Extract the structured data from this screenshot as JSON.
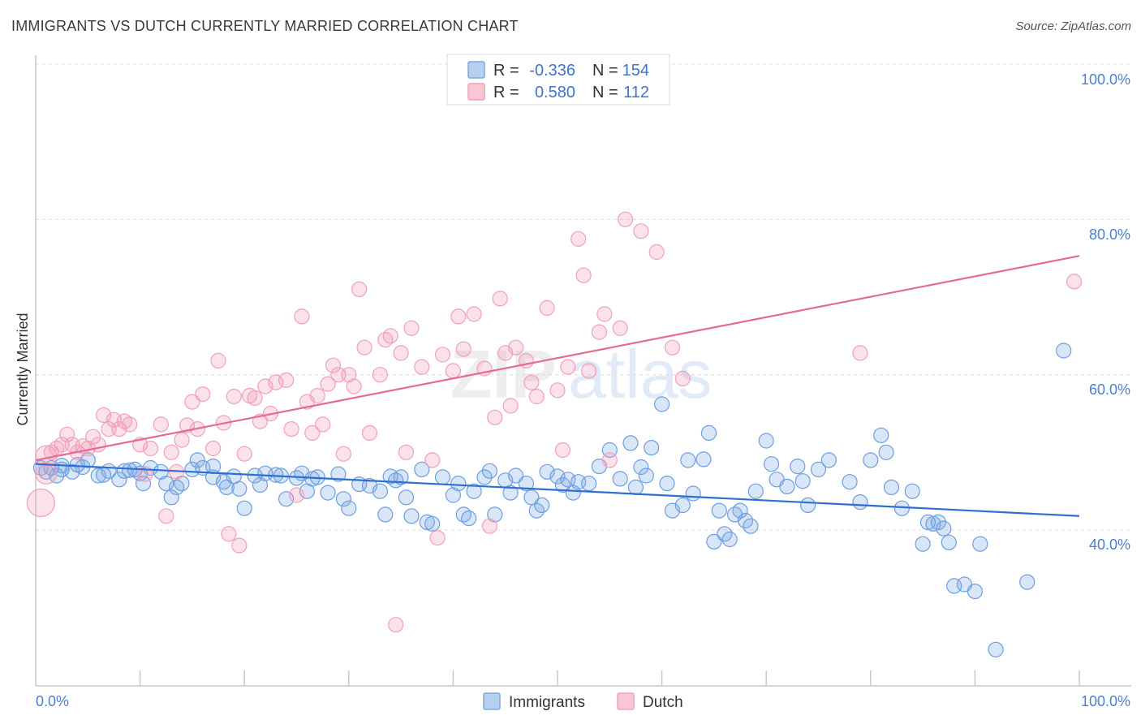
{
  "header": {
    "title": "IMMIGRANTS VS DUTCH CURRENTLY MARRIED CORRELATION CHART",
    "source": "Source: ZipAtlas.com"
  },
  "watermark": {
    "zip": "ZIP",
    "atlas": "atlas"
  },
  "legend": {
    "r_label": "R =",
    "n_label": "N =",
    "rows": [
      {
        "name": "Immigrants",
        "r": "-0.336",
        "n": "154",
        "color": "#7fa8e0"
      },
      {
        "name": "Dutch",
        "r": "0.580",
        "n": "112",
        "color": "#f0a0b8"
      }
    ]
  },
  "chart_data": {
    "type": "scatter",
    "title": "IMMIGRANTS VS DUTCH CURRENTLY MARRIED CORRELATION CHART",
    "xlabel": "",
    "ylabel": "Currently Married",
    "xlim": [
      0,
      100
    ],
    "ylim": [
      20,
      104
    ],
    "x_tick_labels": [
      "0.0%",
      "100.0%"
    ],
    "y_ticks": [
      40,
      60,
      80,
      100
    ],
    "y_tick_labels": [
      "40.0%",
      "60.0%",
      "80.0%",
      "100.0%"
    ],
    "legend_position": "bottom-center",
    "series": [
      {
        "name": "Immigrants",
        "color": "#6d9ee0",
        "line_color": "#2e6fd1",
        "trend": {
          "x": [
            0,
            100
          ],
          "y": [
            48.5,
            41.8
          ]
        },
        "points": [
          [
            0.5,
            48
          ],
          [
            1,
            47.5
          ],
          [
            1.5,
            48
          ],
          [
            2,
            47
          ],
          [
            2.5,
            48.3
          ],
          [
            3.5,
            47.5
          ],
          [
            4.5,
            48.1
          ],
          [
            5,
            49
          ],
          [
            6,
            47
          ],
          [
            6.5,
            47.1
          ],
          [
            7,
            47.6
          ],
          [
            8,
            46.5
          ],
          [
            8.5,
            47.6
          ],
          [
            9,
            47.7
          ],
          [
            10,
            47.3
          ],
          [
            10.3,
            46
          ],
          [
            11,
            48
          ],
          [
            12,
            47.5
          ],
          [
            12.5,
            46
          ],
          [
            13,
            44.2
          ],
          [
            13.5,
            45.5
          ],
          [
            14,
            46
          ],
          [
            15,
            47.8
          ],
          [
            15.5,
            49
          ],
          [
            16,
            48
          ],
          [
            17,
            46.8
          ],
          [
            18,
            46.2
          ],
          [
            18.3,
            45.5
          ],
          [
            19,
            46.9
          ],
          [
            19.5,
            45.3
          ],
          [
            20,
            42.8
          ],
          [
            21,
            47
          ],
          [
            21.5,
            45.8
          ],
          [
            22,
            47.3
          ],
          [
            23,
            47.1
          ],
          [
            23.5,
            47
          ],
          [
            24,
            44
          ],
          [
            25,
            46.7
          ],
          [
            25.5,
            47.3
          ],
          [
            26,
            45
          ],
          [
            27,
            46.8
          ],
          [
            28,
            44.8
          ],
          [
            29,
            47.2
          ],
          [
            29.5,
            44
          ],
          [
            30,
            42.8
          ],
          [
            31,
            45.9
          ],
          [
            32,
            45.7
          ],
          [
            33,
            45
          ],
          [
            33.5,
            42
          ],
          [
            34,
            46.9
          ],
          [
            35,
            46.8
          ],
          [
            35.5,
            44.2
          ],
          [
            36,
            41.8
          ],
          [
            37,
            47.8
          ],
          [
            37.5,
            41
          ],
          [
            38,
            40.8
          ],
          [
            39,
            46.8
          ],
          [
            40,
            44.5
          ],
          [
            40.5,
            46
          ],
          [
            41,
            42
          ],
          [
            41.5,
            41.5
          ],
          [
            42,
            45
          ],
          [
            43,
            46.8
          ],
          [
            43.5,
            47.6
          ],
          [
            44,
            42
          ],
          [
            45,
            46.4
          ],
          [
            45.5,
            44.8
          ],
          [
            46,
            47
          ],
          [
            47,
            46
          ],
          [
            47.5,
            44.2
          ],
          [
            48,
            42.5
          ],
          [
            48.5,
            43.2
          ],
          [
            49,
            47.5
          ],
          [
            50,
            46.9
          ],
          [
            50.5,
            45.8
          ],
          [
            51,
            46.5
          ],
          [
            52,
            46.2
          ],
          [
            53,
            46
          ],
          [
            54,
            48.2
          ],
          [
            55,
            50.3
          ],
          [
            56,
            46.6
          ],
          [
            57,
            51.2
          ],
          [
            57.5,
            45.5
          ],
          [
            58,
            48.1
          ],
          [
            59,
            50.6
          ],
          [
            60,
            56.2
          ],
          [
            60.5,
            46
          ],
          [
            61,
            42.5
          ],
          [
            62,
            43.2
          ],
          [
            62.5,
            49
          ],
          [
            63,
            44.7
          ],
          [
            64,
            49.1
          ],
          [
            64.5,
            52.5
          ],
          [
            65,
            38.5
          ],
          [
            65.5,
            42.5
          ],
          [
            66,
            39.5
          ],
          [
            66.5,
            38.8
          ],
          [
            67,
            42
          ],
          [
            67.5,
            42.5
          ],
          [
            68,
            41.2
          ],
          [
            68.5,
            40.5
          ],
          [
            69,
            45
          ],
          [
            70,
            51.5
          ],
          [
            70.5,
            48.5
          ],
          [
            71,
            46.5
          ],
          [
            72,
            45.6
          ],
          [
            73,
            48.2
          ],
          [
            73.5,
            46.3
          ],
          [
            74,
            43.2
          ],
          [
            75,
            47.8
          ],
          [
            76,
            49
          ],
          [
            78,
            46.2
          ],
          [
            79,
            43.6
          ],
          [
            80,
            49
          ],
          [
            81,
            52.2
          ],
          [
            81.5,
            50
          ],
          [
            82,
            45.5
          ],
          [
            83,
            42.8
          ],
          [
            84,
            45
          ],
          [
            85,
            38.2
          ],
          [
            85.5,
            41
          ],
          [
            86,
            40.8
          ],
          [
            86.5,
            41
          ],
          [
            87,
            40.2
          ],
          [
            87.5,
            38.4
          ],
          [
            88,
            32.8
          ],
          [
            89,
            33
          ],
          [
            90,
            32.1
          ],
          [
            90.5,
            38.2
          ],
          [
            92,
            24.6
          ],
          [
            95,
            33.3
          ],
          [
            98.5,
            63.1
          ],
          [
            2.5,
            47.8
          ],
          [
            4,
            48.4
          ],
          [
            9.5,
            47.8
          ],
          [
            17,
            48.2
          ],
          [
            26.5,
            46.6
          ],
          [
            34.5,
            46.4
          ],
          [
            51.5,
            44.8
          ],
          [
            58.5,
            47
          ]
        ]
      },
      {
        "name": "Dutch",
        "color": "#f0a0b8",
        "line_color": "#e46a94",
        "trend": {
          "x": [
            0,
            100
          ],
          "y": [
            49,
            75.3
          ]
        },
        "points": [
          [
            0.5,
            43.5
          ],
          [
            1,
            47.3
          ],
          [
            1,
            49.5
          ],
          [
            1.5,
            50
          ],
          [
            2,
            50.5
          ],
          [
            2.5,
            51
          ],
          [
            3,
            52.3
          ],
          [
            3.5,
            51
          ],
          [
            4,
            50
          ],
          [
            4.5,
            50.8
          ],
          [
            5,
            50.5
          ],
          [
            5.5,
            52
          ],
          [
            6,
            51
          ],
          [
            6.5,
            54.8
          ],
          [
            7,
            53
          ],
          [
            7.5,
            54.2
          ],
          [
            8,
            53
          ],
          [
            8.5,
            54
          ],
          [
            9,
            53.6
          ],
          [
            10,
            51
          ],
          [
            10.5,
            47.2
          ],
          [
            11,
            50.5
          ],
          [
            12,
            53.6
          ],
          [
            12.5,
            41.8
          ],
          [
            13,
            50
          ],
          [
            13.5,
            47.5
          ],
          [
            14,
            51.6
          ],
          [
            14.5,
            53.5
          ],
          [
            15,
            56.5
          ],
          [
            15.5,
            53
          ],
          [
            16,
            57.5
          ],
          [
            17,
            50.5
          ],
          [
            17.5,
            61.8
          ],
          [
            18,
            53.8
          ],
          [
            18.5,
            39.5
          ],
          [
            19,
            57.2
          ],
          [
            19.5,
            38
          ],
          [
            20,
            49.8
          ],
          [
            20.5,
            57.3
          ],
          [
            21,
            57
          ],
          [
            21.5,
            54
          ],
          [
            22,
            58.5
          ],
          [
            22.5,
            55
          ],
          [
            23,
            59
          ],
          [
            24,
            59.3
          ],
          [
            24.5,
            53
          ],
          [
            25,
            44.5
          ],
          [
            25.5,
            67.5
          ],
          [
            26,
            56.5
          ],
          [
            26.5,
            52.5
          ],
          [
            27,
            57.3
          ],
          [
            27.5,
            53.6
          ],
          [
            28,
            58.8
          ],
          [
            28.5,
            61.2
          ],
          [
            29,
            60
          ],
          [
            29.5,
            49.8
          ],
          [
            30,
            60
          ],
          [
            30.5,
            58.5
          ],
          [
            31,
            71
          ],
          [
            31.5,
            63.5
          ],
          [
            32,
            52.5
          ],
          [
            33,
            60
          ],
          [
            33.5,
            64.5
          ],
          [
            34,
            65
          ],
          [
            34.5,
            27.8
          ],
          [
            35,
            62.8
          ],
          [
            35.5,
            50
          ],
          [
            36,
            66
          ],
          [
            37,
            61
          ],
          [
            38,
            49
          ],
          [
            38.5,
            39
          ],
          [
            39,
            62.6
          ],
          [
            40,
            60.5
          ],
          [
            40.5,
            67.5
          ],
          [
            41,
            63.3
          ],
          [
            42,
            67.8
          ],
          [
            43,
            60.8
          ],
          [
            43.5,
            40.5
          ],
          [
            44,
            54.5
          ],
          [
            44.5,
            69.8
          ],
          [
            45,
            62.8
          ],
          [
            45.5,
            56
          ],
          [
            46,
            63.5
          ],
          [
            47,
            61.8
          ],
          [
            47.5,
            59
          ],
          [
            48,
            57.2
          ],
          [
            49,
            68.6
          ],
          [
            50,
            58
          ],
          [
            50.5,
            50.3
          ],
          [
            51,
            61
          ],
          [
            52,
            77.5
          ],
          [
            52.5,
            72.8
          ],
          [
            53,
            60.5
          ],
          [
            54,
            65.5
          ],
          [
            54.5,
            67.8
          ],
          [
            55,
            49
          ],
          [
            56,
            66
          ],
          [
            56.5,
            80
          ],
          [
            58,
            78.5
          ],
          [
            59.5,
            75.8
          ],
          [
            61,
            63.5
          ],
          [
            62,
            59.5
          ],
          [
            79,
            62.8
          ],
          [
            99.5,
            72
          ]
        ]
      }
    ]
  }
}
